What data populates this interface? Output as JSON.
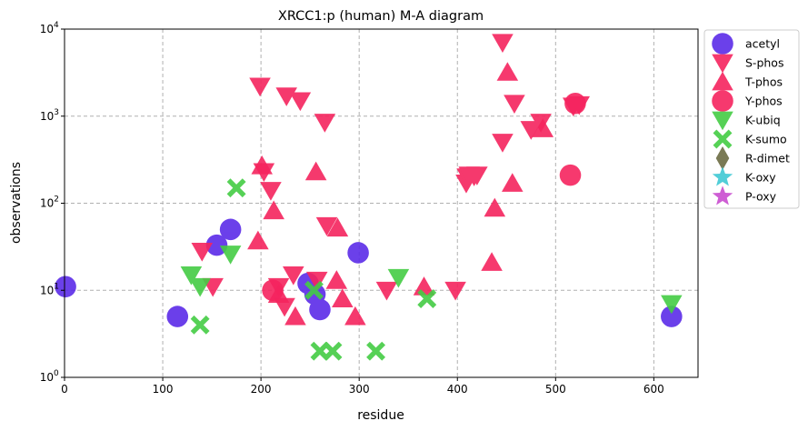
{
  "chart_data": {
    "type": "scatter",
    "title": "XRCC1:p (human) M-A diagram",
    "xlabel": "residue",
    "ylabel": "observations",
    "xlim": [
      0,
      645
    ],
    "ylim": [
      1,
      10000
    ],
    "y_scale": "log",
    "x_ticks": [
      0,
      100,
      200,
      300,
      400,
      500,
      600
    ],
    "y_ticks": [
      {
        "value": 1,
        "base": "10",
        "exp": "0"
      },
      {
        "value": 10,
        "base": "10",
        "exp": "1"
      },
      {
        "value": 100,
        "base": "10",
        "exp": "2"
      },
      {
        "value": 1000,
        "base": "10",
        "exp": "3"
      },
      {
        "value": 10000,
        "base": "10",
        "exp": "4"
      }
    ],
    "grid": true,
    "legend_position": "outside-right",
    "series": [
      {
        "name": "acetyl",
        "marker": "circle",
        "color": "#5b2be8",
        "points": [
          [
            1,
            11
          ],
          [
            115,
            5
          ],
          [
            155,
            33
          ],
          [
            169,
            50
          ],
          [
            248,
            12
          ],
          [
            255,
            9
          ],
          [
            260,
            6
          ],
          [
            299,
            27
          ],
          [
            618,
            5
          ]
        ]
      },
      {
        "name": "S-phos",
        "marker": "triangle-down",
        "color": "#f5245e",
        "points": [
          [
            140,
            28
          ],
          [
            151,
            11
          ],
          [
            199,
            2200
          ],
          [
            203,
            230
          ],
          [
            210,
            140
          ],
          [
            218,
            11
          ],
          [
            224,
            6.5
          ],
          [
            226,
            1700
          ],
          [
            233,
            15
          ],
          [
            240,
            1500
          ],
          [
            257,
            13
          ],
          [
            265,
            850
          ],
          [
            267,
            55
          ],
          [
            328,
            10
          ],
          [
            398,
            10
          ],
          [
            409,
            170
          ],
          [
            410,
            200
          ],
          [
            412,
            210
          ],
          [
            417,
            205
          ],
          [
            420,
            210
          ],
          [
            446,
            7000
          ],
          [
            446,
            500
          ],
          [
            458,
            1400
          ],
          [
            475,
            700
          ],
          [
            485,
            850
          ],
          [
            518,
            1300
          ],
          [
            524,
            1350
          ]
        ]
      },
      {
        "name": "T-phos",
        "marker": "triangle-up",
        "color": "#f5245e",
        "points": [
          [
            197,
            37
          ],
          [
            201,
            270
          ],
          [
            213,
            82
          ],
          [
            218,
            9
          ],
          [
            235,
            5
          ],
          [
            256,
            230
          ],
          [
            277,
            13
          ],
          [
            278,
            52
          ],
          [
            283,
            8
          ],
          [
            296,
            5
          ],
          [
            366,
            11
          ],
          [
            435,
            21
          ],
          [
            438,
            88
          ],
          [
            451,
            3200
          ],
          [
            456,
            170
          ],
          [
            487,
            720
          ]
        ]
      },
      {
        "name": "Y-phos",
        "marker": "circle",
        "color": "#f5245e",
        "points": [
          [
            212,
            10
          ],
          [
            515,
            210
          ],
          [
            520,
            1400
          ]
        ]
      },
      {
        "name": "K-ubiq",
        "marker": "triangle-down",
        "color": "#44cc44",
        "points": [
          [
            129,
            15
          ],
          [
            138,
            11
          ],
          [
            169,
            26
          ],
          [
            340,
            14
          ],
          [
            618,
            7
          ]
        ]
      },
      {
        "name": "K-sumo",
        "marker": "x",
        "color": "#44cc44",
        "points": [
          [
            138,
            4
          ],
          [
            175,
            150
          ],
          [
            254,
            10
          ],
          [
            260,
            2
          ],
          [
            273,
            2
          ],
          [
            317,
            2
          ],
          [
            369,
            8
          ]
        ]
      },
      {
        "name": "R-dimet",
        "marker": "diamond",
        "color": "#6b6b42",
        "points": []
      },
      {
        "name": "K-oxy",
        "marker": "star",
        "color": "#3fc9d4",
        "points": []
      },
      {
        "name": "P-oxy",
        "marker": "star",
        "color": "#c94ccf",
        "points": []
      }
    ]
  }
}
